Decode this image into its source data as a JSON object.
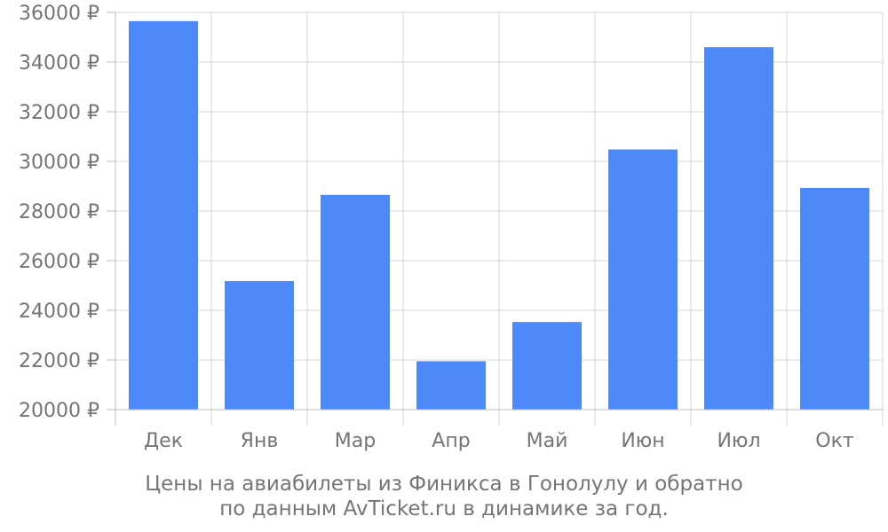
{
  "chart_data": {
    "type": "bar",
    "categories": [
      "Дек",
      "Янв",
      "Мар",
      "Апр",
      "Май",
      "Июн",
      "Июл",
      "Окт"
    ],
    "values": [
      35650,
      25180,
      28650,
      21950,
      23530,
      30480,
      34600,
      28930
    ],
    "ylim": [
      20000,
      36000
    ],
    "ytick_values": [
      20000,
      22000,
      24000,
      26000,
      28000,
      30000,
      32000,
      34000,
      36000
    ],
    "ytick_labels": [
      "20000 ₽",
      "22000 ₽",
      "24000 ₽",
      "26000 ₽",
      "28000 ₽",
      "30000 ₽",
      "32000 ₽",
      "34000 ₽",
      "36000 ₽"
    ],
    "grid": true,
    "bar_color": "#4d89f9",
    "caption_lines": [
      "Цены на авиабилеты из Финикса в Гонолулу и обратно",
      "по данным AvTicket.ru в динамике за год."
    ]
  }
}
